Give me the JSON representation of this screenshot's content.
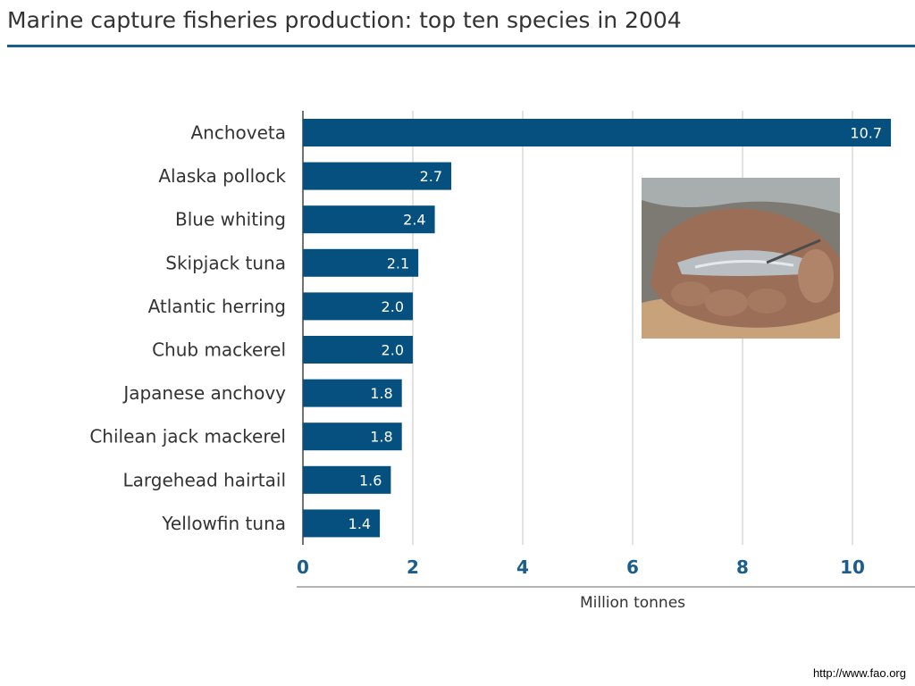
{
  "header": {
    "title": "Marine capture fisheries production: top ten species in 2004"
  },
  "footer": {
    "url": "http://www.fao.org"
  },
  "colors": {
    "bar": "#05507f",
    "axis_tick": "#1b5d8c",
    "title_rule": "#1b5d8c"
  },
  "chart_data": {
    "type": "bar",
    "orientation": "horizontal",
    "title": "Marine capture fisheries production: top ten species in 2004",
    "xlabel": "Million tonnes",
    "ylabel": "",
    "xlim": [
      0,
      11
    ],
    "xticks": [
      0,
      2,
      4,
      6,
      8,
      10
    ],
    "grid": true,
    "categories": [
      "Anchoveta",
      "Alaska pollock",
      "Blue whiting",
      "Skipjack tuna",
      "Atlantic herring",
      "Chub mackerel",
      "Japanese anchovy",
      "Chilean jack mackerel",
      "Largehead hairtail",
      "Yellowfin tuna"
    ],
    "values": [
      10.7,
      2.7,
      2.4,
      2.1,
      2.0,
      2.0,
      1.8,
      1.8,
      1.6,
      1.4
    ],
    "data_labels": [
      "10.7",
      "2.7",
      "2.4",
      "2.1",
      "2.0",
      "2.0",
      "1.8",
      "1.8",
      "1.6",
      "1.4"
    ]
  }
}
